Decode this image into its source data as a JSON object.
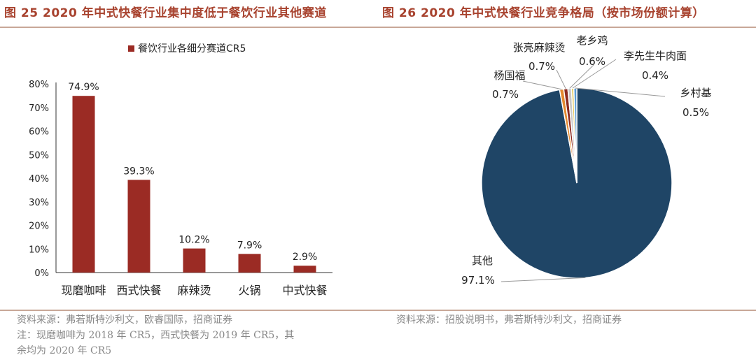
{
  "figures": {
    "left_title": "图 25 2020 年中式快餐行业集中度低于餐饮行业其他赛道",
    "right_title": "图 26 2020 年中式快餐行业竞争格局（按市场份额计算）"
  },
  "chart_data": [
    {
      "type": "bar",
      "title": "",
      "legend": "餐饮行业各细分赛道CR5",
      "categories": [
        "现磨咖啡",
        "西式快餐",
        "麻辣烫",
        "火锅",
        "中式快餐"
      ],
      "values": [
        74.9,
        39.3,
        10.2,
        7.9,
        2.9
      ],
      "value_labels": [
        "74.9%",
        "39.3%",
        "10.2%",
        "7.9%",
        "2.9%"
      ],
      "yticks": [
        "0%",
        "10%",
        "20%",
        "30%",
        "40%",
        "50%",
        "60%",
        "70%",
        "80%"
      ],
      "ylim": [
        0,
        80
      ],
      "color": "#9b2b24"
    },
    {
      "type": "pie",
      "slices": [
        {
          "name": "其他",
          "value": 97.1,
          "label": "97.1%",
          "color": "#1f4566"
        },
        {
          "name": "杨国福",
          "value": 0.7,
          "label": "0.7%",
          "color": "#e58a2f"
        },
        {
          "name": "张亮麻辣烫",
          "value": 0.7,
          "label": "0.7%",
          "color": "#8c2a1f"
        },
        {
          "name": "老乡鸡",
          "value": 0.6,
          "label": "0.6%",
          "color": "#c8c8c8"
        },
        {
          "name": "李先生牛肉面",
          "value": 0.4,
          "label": "0.4%",
          "color": "#e7c95a"
        },
        {
          "name": "乡村基",
          "value": 0.5,
          "label": "0.5%",
          "color": "#5a9bd3"
        }
      ]
    }
  ],
  "sources": {
    "left": [
      "资料来源：弗若斯特沙利文，欧睿国际，招商证券",
      "注：现磨咖啡为 2018 年 CR5，西式快餐为 2019 年 CR5，其",
      "余均为 2020 年 CR5"
    ],
    "right": "资料来源：招股说明书，弗若斯特沙利文，招商证券"
  },
  "colors": {
    "title": "#a8432f",
    "rule": "#c8a898"
  }
}
